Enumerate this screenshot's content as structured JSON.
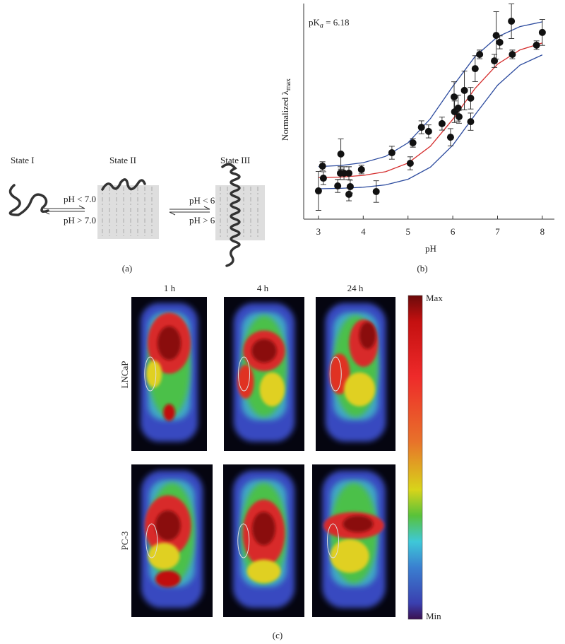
{
  "diagram": {
    "states": [
      "State I",
      "State II",
      "State III"
    ],
    "transitions": [
      {
        "forward": "pH < 7.0",
        "backward": "pH > 7.0"
      },
      {
        "forward": "pH < 6.0",
        "backward": "pH > 6.0"
      }
    ],
    "label": "(a)"
  },
  "chart_data": {
    "type": "scatter",
    "label": "(b)",
    "annotation": {
      "text": "pK",
      "sub": "a",
      "rest": " = 6.18"
    },
    "xlabel": "pH",
    "ylabel": {
      "text": "Normalized λ",
      "sub": "max"
    },
    "xlim": [
      2.67,
      8.27
    ],
    "ylim": [
      0,
      1
    ],
    "xticks": [
      3,
      4,
      5,
      6,
      7,
      8
    ],
    "color": "#111111",
    "x": [
      3.0,
      3.09,
      3.11,
      3.43,
      3.49,
      3.5,
      3.57,
      3.68,
      3.68,
      3.71,
      3.96,
      4.29,
      4.64,
      5.05,
      5.11,
      5.3,
      5.46,
      5.76,
      5.95,
      6.03,
      6.04,
      6.12,
      6.14,
      6.26,
      6.4,
      6.4,
      6.5,
      6.6,
      6.93,
      6.97,
      7.05,
      7.31,
      7.33,
      7.87,
      8.0
    ],
    "values": [
      0.131,
      0.246,
      0.19,
      0.154,
      0.213,
      0.302,
      0.213,
      0.213,
      0.115,
      0.151,
      0.23,
      0.128,
      0.308,
      0.259,
      0.354,
      0.426,
      0.407,
      0.443,
      0.38,
      0.567,
      0.498,
      0.515,
      0.475,
      0.597,
      0.561,
      0.452,
      0.698,
      0.764,
      0.734,
      0.852,
      0.82,
      0.918,
      0.764,
      0.807,
      0.866
    ],
    "errors": [
      0.09,
      0.02,
      0.03,
      0.03,
      0.03,
      0.07,
      0.03,
      0.03,
      0.03,
      0.03,
      0.02,
      0.05,
      0.03,
      0.03,
      0.02,
      0.03,
      0.03,
      0.03,
      0.04,
      0.07,
      0.05,
      0.06,
      0.03,
      0.09,
      0.05,
      0.04,
      0.06,
      0.02,
      0.03,
      0.11,
      0.03,
      0.08,
      0.02,
      0.02,
      0.06
    ],
    "fits": [
      {
        "color": "#2b4a9e",
        "x": [
          3,
          3.5,
          4,
          4.5,
          5,
          5.5,
          6,
          6.5,
          7,
          7.5,
          8
        ],
        "values": [
          0.244,
          0.249,
          0.262,
          0.291,
          0.354,
          0.466,
          0.616,
          0.755,
          0.846,
          0.893,
          0.915
        ]
      },
      {
        "color": "#d42a2a",
        "x": [
          3,
          3.5,
          4,
          4.5,
          5,
          5.5,
          6,
          6.5,
          7,
          7.5,
          8
        ],
        "values": [
          0.192,
          0.195,
          0.203,
          0.22,
          0.26,
          0.338,
          0.463,
          0.607,
          0.719,
          0.785,
          0.817
        ]
      },
      {
        "color": "#2b4a9e",
        "x": [
          3,
          3.5,
          4,
          4.5,
          5,
          5.5,
          6,
          6.5,
          7,
          7.5,
          8
        ],
        "values": [
          0.141,
          0.143,
          0.148,
          0.159,
          0.185,
          0.241,
          0.343,
          0.485,
          0.621,
          0.714,
          0.762
        ]
      }
    ]
  },
  "imaging": {
    "columns": [
      "1 h",
      "4 h",
      "24 h"
    ],
    "rows": [
      "LNCaP",
      "PC-3"
    ],
    "colorbar": {
      "max": "Max",
      "min": "Min"
    },
    "label": "(c)"
  }
}
